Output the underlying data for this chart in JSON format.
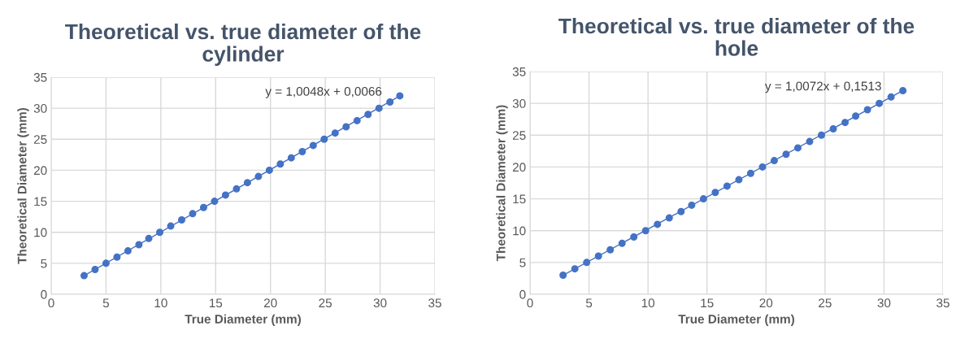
{
  "chart_data": [
    {
      "type": "scatter",
      "title": "Theoretical vs. true diameter of the cylinder",
      "xlabel": "True Diameter (mm)",
      "ylabel": "Theoretical Diameter (mm)",
      "x": [
        3.0,
        4.0,
        5.0,
        6.0,
        7.0,
        8.0,
        8.9,
        9.9,
        10.9,
        11.9,
        12.9,
        13.9,
        14.9,
        15.9,
        16.9,
        17.9,
        18.9,
        19.9,
        20.9,
        21.9,
        22.9,
        23.9,
        24.9,
        25.9,
        26.9,
        27.9,
        28.9,
        29.9,
        30.9,
        31.8
      ],
      "series": [
        {
          "color": "#4472c4",
          "marker": "circle",
          "values": [
            3,
            4,
            5,
            6,
            7,
            8,
            9,
            10,
            11,
            12,
            13,
            14,
            15,
            16,
            17,
            18,
            19,
            20,
            21,
            22,
            23,
            24,
            25,
            26,
            27,
            28,
            29,
            30,
            31,
            32
          ]
        },
        {
          "type": "line",
          "color": "#4472c4",
          "marker": "none",
          "x": [
            3.0,
            31.8
          ],
          "values": [
            3.0,
            32.0
          ]
        }
      ],
      "annotations": [
        "y = 1,0048x + 0,0066"
      ],
      "xlim": [
        0,
        35
      ],
      "ylim": [
        0,
        35
      ],
      "xticks": [
        0,
        5,
        10,
        15,
        20,
        25,
        30,
        35
      ],
      "yticks": [
        0,
        5,
        10,
        15,
        20,
        25,
        30,
        35
      ],
      "grid": true
    },
    {
      "type": "scatter",
      "title": "Theoretical vs. true diameter of the hole",
      "xlabel": "True Diameter (mm)",
      "ylabel": "Theoretical Diameter (mm)",
      "x": [
        2.8,
        3.8,
        4.8,
        5.8,
        6.8,
        7.8,
        8.8,
        9.8,
        10.8,
        11.8,
        12.8,
        13.7,
        14.7,
        15.7,
        16.7,
        17.7,
        18.7,
        19.7,
        20.7,
        21.7,
        22.7,
        23.7,
        24.7,
        25.7,
        26.7,
        27.6,
        28.6,
        29.6,
        30.6,
        31.6
      ],
      "series": [
        {
          "color": "#4472c4",
          "marker": "circle",
          "values": [
            3,
            4,
            5,
            6,
            7,
            8,
            9,
            10,
            11,
            12,
            13,
            14,
            15,
            16,
            17,
            18,
            19,
            20,
            21,
            22,
            23,
            24,
            25,
            26,
            27,
            28,
            29,
            30,
            31,
            32
          ]
        },
        {
          "type": "line",
          "color": "#4472c4",
          "marker": "none",
          "x": [
            2.8,
            31.6
          ],
          "values": [
            3.0,
            32.0
          ]
        }
      ],
      "annotations": [
        "y = 1,0072x + 0,1513"
      ],
      "xlim": [
        0,
        35
      ],
      "ylim": [
        0,
        35
      ],
      "xticks": [
        0,
        5,
        10,
        15,
        20,
        25,
        30,
        35
      ],
      "yticks": [
        0,
        5,
        10,
        15,
        20,
        25,
        30,
        35
      ],
      "grid": true
    }
  ]
}
